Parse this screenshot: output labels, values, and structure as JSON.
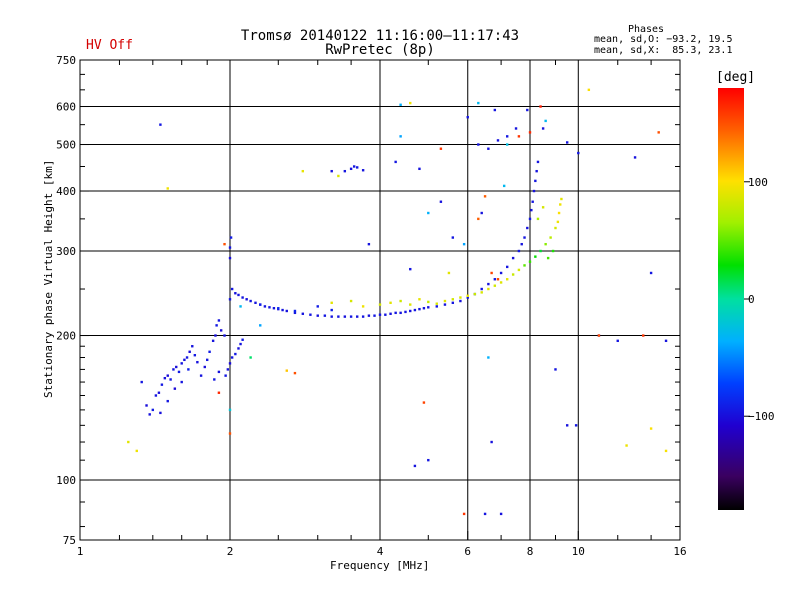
{
  "header": {
    "title_line1": "Tromsø 20140122 11:16:00–11:17:43",
    "title_line2": "RwPretec (8p)",
    "hv_status": "HV Off",
    "phases_title": "Phases",
    "phases_o": "mean, sd,O: −93.2, 19.5",
    "phases_x": "mean, sd,X:  85.3, 23.1"
  },
  "colorbar": {
    "title": "[deg]",
    "ticks": [
      {
        "label": "100",
        "value": 100
      },
      {
        "label": "0",
        "value": 0
      },
      {
        "label": "−100",
        "value": -100
      }
    ],
    "range": [
      -180,
      180
    ]
  },
  "chart_data": {
    "type": "scatter",
    "title": "Tromsø 20140122 11:16:00–11:17:43",
    "subtitle": "RwPretec (8p)",
    "xlabel": "Frequency [MHz]",
    "ylabel": "Stationary phase Virtual Height [km]",
    "xscale": "log",
    "yscale": "log",
    "xlim": [
      1,
      16
    ],
    "ylim": [
      75,
      750
    ],
    "xticks": [
      {
        "label": "1",
        "value": 1
      },
      {
        "label": "2",
        "value": 2
      },
      {
        "label": "4",
        "value": 4
      },
      {
        "label": "6",
        "value": 6
      },
      {
        "label": "8",
        "value": 8
      },
      {
        "label": "10",
        "value": 10
      },
      {
        "label": "16",
        "value": 16
      }
    ],
    "yticks": [
      {
        "label": "75",
        "value": 75
      },
      {
        "label": "100",
        "value": 100
      },
      {
        "label": "200",
        "value": 200
      },
      {
        "label": "300",
        "value": 300
      },
      {
        "label": "400",
        "value": 400
      },
      {
        "label": "500",
        "value": 500
      },
      {
        "label": "600",
        "value": 600
      },
      {
        "label": "750",
        "value": 750
      }
    ],
    "grid_x": [
      2,
      4,
      6,
      8,
      10
    ],
    "grid_y": [
      100,
      200,
      300,
      400,
      500,
      600
    ],
    "color_encoding": "phase [deg]",
    "series": [
      {
        "name": "O-mode (blue)",
        "points": [
          [
            1.33,
            160,
            -95
          ],
          [
            1.36,
            143,
            -100
          ],
          [
            1.38,
            137,
            -98
          ],
          [
            1.4,
            140,
            -92
          ],
          [
            1.42,
            150,
            -96
          ],
          [
            1.44,
            152,
            -100
          ],
          [
            1.46,
            158,
            -94
          ],
          [
            1.48,
            163,
            -99
          ],
          [
            1.5,
            165,
            -102
          ],
          [
            1.52,
            162,
            -95
          ],
          [
            1.54,
            170,
            -97
          ],
          [
            1.56,
            172,
            -100
          ],
          [
            1.58,
            168,
            -93
          ],
          [
            1.6,
            175,
            -96
          ],
          [
            1.62,
            178,
            -99
          ],
          [
            1.64,
            180,
            -95
          ],
          [
            1.66,
            185,
            -101
          ],
          [
            1.68,
            190,
            -97
          ],
          [
            1.7,
            182,
            -94
          ],
          [
            1.72,
            176,
            -98
          ],
          [
            1.45,
            138,
            -99
          ],
          [
            1.5,
            146,
            -95
          ],
          [
            1.55,
            155,
            -103
          ],
          [
            1.6,
            160,
            -96
          ],
          [
            1.65,
            170,
            -90
          ],
          [
            1.75,
            165,
            -97
          ],
          [
            1.78,
            172,
            -100
          ],
          [
            1.8,
            178,
            -95
          ],
          [
            1.82,
            185,
            -92
          ],
          [
            1.85,
            195,
            -97
          ],
          [
            1.87,
            200,
            -99
          ],
          [
            1.88,
            210,
            -94
          ],
          [
            1.9,
            215,
            -96
          ],
          [
            1.92,
            205,
            -100
          ],
          [
            1.95,
            200,
            -97
          ],
          [
            1.96,
            165,
            -95
          ],
          [
            1.98,
            170,
            -98
          ],
          [
            2.0,
            175,
            -101
          ],
          [
            2.02,
            180,
            -96
          ],
          [
            2.05,
            183,
            -94
          ],
          [
            2.08,
            188,
            -99
          ],
          [
            2.1,
            192,
            -97
          ],
          [
            2.12,
            196,
            -93
          ],
          [
            1.86,
            162,
            -95
          ],
          [
            1.9,
            168,
            -98
          ],
          [
            2.0,
            238,
            -96
          ],
          [
            2.0,
            290,
            -100
          ],
          [
            2.0,
            305,
            -96
          ],
          [
            2.01,
            320,
            -93
          ],
          [
            2.02,
            250,
            -95
          ],
          [
            2.05,
            245,
            -98
          ],
          [
            2.08,
            243,
            -97
          ],
          [
            2.12,
            240,
            -96
          ],
          [
            2.16,
            238,
            -99
          ],
          [
            2.2,
            236,
            -95
          ],
          [
            2.25,
            234,
            -97
          ],
          [
            2.3,
            232,
            -98
          ],
          [
            2.35,
            230,
            -96
          ],
          [
            2.4,
            229,
            -95
          ],
          [
            2.45,
            228,
            -97
          ],
          [
            2.5,
            227,
            -99
          ],
          [
            2.55,
            226,
            -96
          ],
          [
            2.6,
            225,
            -98
          ],
          [
            2.7,
            223,
            -95
          ],
          [
            2.8,
            222,
            -97
          ],
          [
            2.9,
            221,
            -96
          ],
          [
            3.0,
            220,
            -98
          ],
          [
            3.1,
            220,
            -95
          ],
          [
            3.2,
            219,
            -97
          ],
          [
            3.3,
            219,
            -96
          ],
          [
            3.4,
            219,
            -98
          ],
          [
            3.5,
            219,
            -95
          ],
          [
            3.6,
            219,
            -97
          ],
          [
            3.7,
            219,
            -96
          ],
          [
            3.8,
            220,
            -98
          ],
          [
            3.9,
            220,
            -95
          ],
          [
            4.0,
            221,
            -97
          ],
          [
            4.1,
            221,
            -96
          ],
          [
            4.2,
            222,
            -98
          ],
          [
            4.3,
            223,
            -95
          ],
          [
            4.4,
            223,
            -97
          ],
          [
            4.5,
            224,
            -96
          ],
          [
            4.6,
            225,
            -98
          ],
          [
            4.7,
            226,
            -95
          ],
          [
            4.8,
            227,
            -97
          ],
          [
            4.9,
            228,
            -96
          ],
          [
            5.0,
            229,
            -98
          ],
          [
            5.2,
            230,
            -95
          ],
          [
            5.4,
            232,
            -97
          ],
          [
            5.6,
            234,
            -96
          ],
          [
            5.8,
            236,
            -98
          ],
          [
            6.0,
            240,
            -95
          ],
          [
            6.2,
            244,
            -97
          ],
          [
            6.4,
            250,
            -96
          ],
          [
            6.6,
            256,
            -98
          ],
          [
            6.8,
            262,
            -95
          ],
          [
            7.0,
            270,
            -97
          ],
          [
            7.2,
            278,
            -96
          ],
          [
            7.4,
            290,
            -98
          ],
          [
            7.6,
            300,
            -95
          ],
          [
            7.7,
            310,
            -97
          ],
          [
            7.8,
            320,
            -96
          ],
          [
            7.9,
            335,
            -98
          ],
          [
            8.0,
            350,
            -95
          ],
          [
            8.05,
            365,
            -97
          ],
          [
            8.1,
            380,
            -96
          ],
          [
            8.15,
            400,
            -98
          ],
          [
            8.2,
            420,
            -95
          ],
          [
            8.25,
            440,
            -97
          ],
          [
            8.3,
            460,
            -96
          ],
          [
            2.3,
            232,
            -90
          ],
          [
            2.5,
            228,
            -85
          ],
          [
            2.7,
            225,
            -88
          ],
          [
            3.0,
            230,
            -92
          ],
          [
            3.2,
            226,
            -90
          ],
          [
            3.4,
            440,
            -96
          ],
          [
            3.5,
            445,
            -98
          ],
          [
            3.6,
            448,
            -95
          ],
          [
            3.7,
            442,
            -97
          ],
          [
            3.55,
            450,
            -96
          ],
          [
            3.2,
            440,
            -98
          ],
          [
            4.3,
            460,
            -95
          ],
          [
            4.8,
            445,
            -97
          ],
          [
            6.3,
            500,
            -96
          ],
          [
            6.6,
            490,
            -98
          ],
          [
            7.2,
            520,
            -95
          ],
          [
            7.5,
            540,
            -97
          ],
          [
            6.8,
            590,
            -96
          ],
          [
            1.45,
            550,
            -95
          ],
          [
            3.8,
            310,
            -97
          ],
          [
            4.6,
            275,
            -96
          ],
          [
            5.3,
            380,
            -98
          ],
          [
            5.6,
            320,
            -95
          ],
          [
            6.4,
            360,
            -97
          ],
          [
            6.5,
            85,
            -96
          ],
          [
            7.0,
            85,
            -98
          ],
          [
            5.0,
            110,
            -95
          ],
          [
            4.7,
            107,
            -97
          ],
          [
            9.0,
            170,
            -96
          ],
          [
            9.5,
            130,
            -98
          ],
          [
            10.0,
            480,
            -95
          ],
          [
            11.0,
            200,
            -97
          ],
          [
            12.0,
            195,
            -96
          ],
          [
            13.0,
            470,
            -98
          ],
          [
            14.0,
            270,
            -95
          ],
          [
            15.0,
            195,
            -97
          ],
          [
            6.0,
            570,
            -96
          ],
          [
            6.9,
            510,
            -98
          ],
          [
            7.9,
            590,
            -95
          ],
          [
            8.5,
            540,
            -97
          ],
          [
            9.5,
            505,
            -96
          ],
          [
            6.7,
            120,
            -98
          ],
          [
            9.9,
            130,
            -95
          ]
        ]
      },
      {
        "name": "X-mode (yellow-green)",
        "points": [
          [
            4.0,
            232,
            85
          ],
          [
            4.2,
            234,
            90
          ],
          [
            4.4,
            236,
            82
          ],
          [
            4.6,
            232,
            88
          ],
          [
            4.8,
            238,
            92
          ],
          [
            5.0,
            235,
            80
          ],
          [
            5.2,
            233,
            86
          ],
          [
            5.4,
            236,
            90
          ],
          [
            5.6,
            238,
            84
          ],
          [
            5.8,
            240,
            88
          ],
          [
            6.0,
            242,
            92
          ],
          [
            6.2,
            244,
            80
          ],
          [
            6.4,
            246,
            86
          ],
          [
            6.6,
            250,
            90
          ],
          [
            6.8,
            254,
            84
          ],
          [
            7.0,
            258,
            88
          ],
          [
            7.2,
            262,
            92
          ],
          [
            7.4,
            268,
            80
          ],
          [
            7.6,
            274,
            86
          ],
          [
            7.8,
            280,
            50
          ],
          [
            8.0,
            285,
            40
          ],
          [
            8.2,
            292,
            30
          ],
          [
            8.4,
            300,
            20
          ],
          [
            8.6,
            310,
            60
          ],
          [
            8.8,
            320,
            75
          ],
          [
            9.0,
            335,
            85
          ],
          [
            9.1,
            345,
            95
          ],
          [
            9.15,
            360,
            100
          ],
          [
            9.2,
            375,
            95
          ],
          [
            9.25,
            385,
            90
          ],
          [
            8.7,
            290,
            45
          ],
          [
            8.9,
            300,
            35
          ],
          [
            8.3,
            350,
            70
          ],
          [
            8.5,
            370,
            85
          ],
          [
            3.2,
            234,
            90
          ],
          [
            3.5,
            236,
            85
          ],
          [
            3.7,
            230,
            95
          ],
          [
            2.8,
            440,
            92
          ],
          [
            3.3,
            430,
            88
          ],
          [
            4.6,
            610,
            95
          ],
          [
            10.5,
            650,
            100
          ],
          [
            2.6,
            169,
            110
          ],
          [
            1.5,
            405,
            95
          ],
          [
            1.25,
            120,
            90
          ],
          [
            1.3,
            115,
            95
          ],
          [
            5.5,
            270,
            90
          ],
          [
            15.0,
            115,
            98
          ],
          [
            14.0,
            128,
            100
          ],
          [
            12.5,
            118,
            94
          ]
        ]
      },
      {
        "name": "Red/orange outliers",
        "points": [
          [
            1.95,
            310,
            150
          ],
          [
            5.3,
            490,
            160
          ],
          [
            6.3,
            350,
            145
          ],
          [
            6.7,
            270,
            155
          ],
          [
            8.0,
            530,
            165
          ],
          [
            8.4,
            600,
            170
          ],
          [
            14.5,
            530,
            150
          ],
          [
            4.9,
            145,
            155
          ],
          [
            5.9,
            85,
            160
          ],
          [
            2.0,
            125,
            150
          ],
          [
            1.9,
            152,
            165
          ],
          [
            2.7,
            167,
            150
          ],
          [
            6.5,
            390,
            145
          ],
          [
            7.6,
            520,
            160
          ],
          [
            6.9,
            262,
            155
          ],
          [
            11.0,
            200,
            150
          ],
          [
            13.5,
            200,
            160
          ]
        ]
      },
      {
        "name": "Cyan/green scatter",
        "points": [
          [
            4.4,
            520,
            -40
          ],
          [
            7.1,
            410,
            -30
          ],
          [
            6.6,
            180,
            -35
          ],
          [
            2.2,
            180,
            10
          ],
          [
            2.0,
            140,
            -20
          ],
          [
            5.0,
            360,
            -35
          ],
          [
            6.3,
            610,
            -30
          ],
          [
            7.2,
            500,
            -25
          ],
          [
            5.9,
            310,
            -40
          ],
          [
            8.6,
            560,
            -30
          ],
          [
            2.3,
            210,
            -40
          ],
          [
            2.1,
            230,
            -30
          ],
          [
            4.4,
            605,
            -35
          ]
        ]
      }
    ]
  }
}
